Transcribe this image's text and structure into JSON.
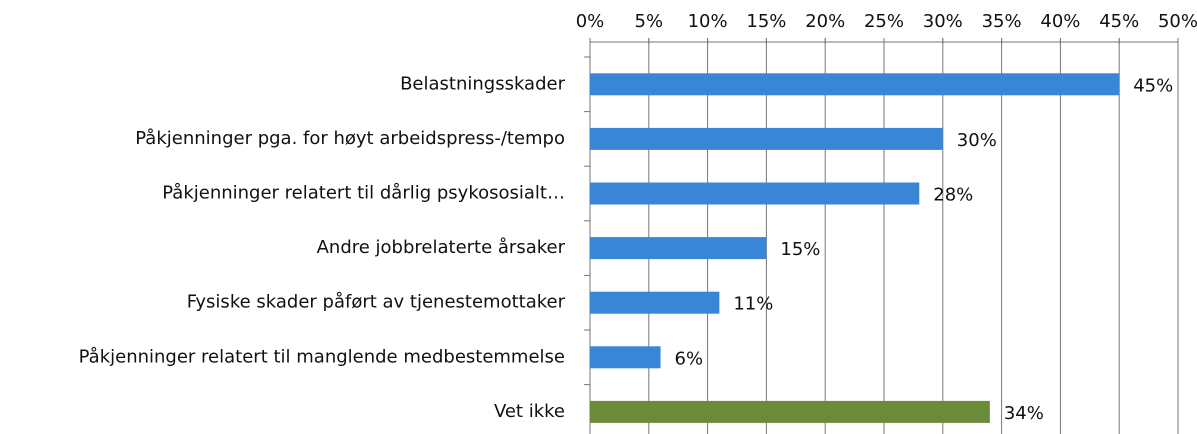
{
  "chart_data": {
    "type": "barh",
    "categories": [
      "Belastningsskader",
      "Påkjenninger pga. for høyt arbeidspress-/tempo",
      "Påkjenninger relatert til dårlig psykososialt…",
      "Andre jobbrelaterte årsaker",
      "Fysiske skader påført av tjenestemottaker",
      "Påkjenninger relatert til manglende medbestemmelse",
      "Vet ikke"
    ],
    "values": [
      45,
      30,
      28,
      15,
      11,
      6,
      34
    ],
    "value_labels": [
      "45%",
      "30%",
      "28%",
      "15%",
      "11%",
      "6%",
      "34%"
    ],
    "colors": [
      "#3a86d6",
      "#3a86d6",
      "#3a86d6",
      "#3a86d6",
      "#3a86d6",
      "#3a86d6",
      "#6a8c3a"
    ],
    "xlim": [
      0,
      50
    ],
    "xticks": [
      {
        "value": 0,
        "label": "0%"
      },
      {
        "value": 5,
        "label": "5%"
      },
      {
        "value": 10,
        "label": "10%"
      },
      {
        "value": 15,
        "label": "15%"
      },
      {
        "value": 20,
        "label": "20%"
      },
      {
        "value": 25,
        "label": "25%"
      },
      {
        "value": 30,
        "label": "30%"
      },
      {
        "value": 35,
        "label": "35%"
      },
      {
        "value": 40,
        "label": "40%"
      },
      {
        "value": 45,
        "label": "45%"
      },
      {
        "value": 50,
        "label": "50%"
      }
    ],
    "grid": true
  }
}
